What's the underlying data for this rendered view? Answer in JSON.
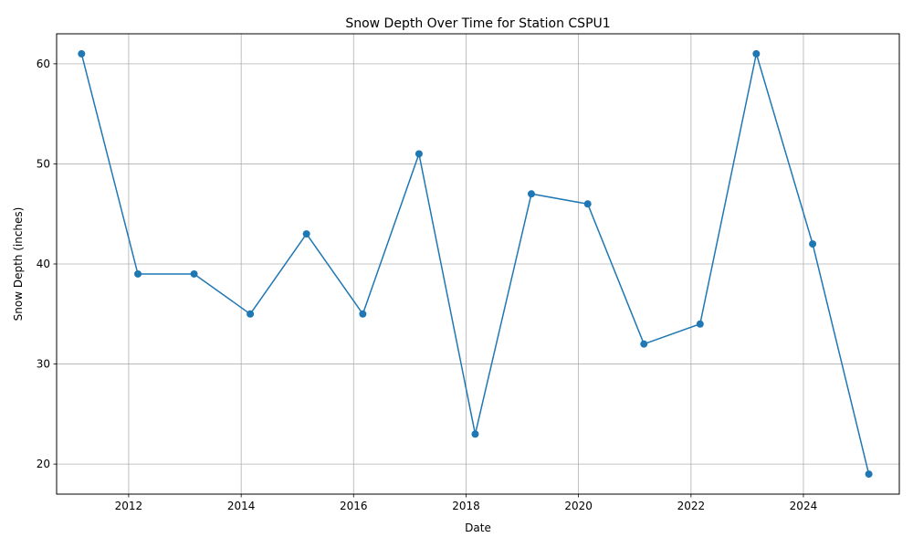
{
  "chart_data": {
    "type": "line",
    "title": "Snow Depth Over Time for Station CSPU1",
    "xlabel": "Date",
    "ylabel": "Snow Depth (inches)",
    "x_is_date": true,
    "xlim": [
      "2010-09-20",
      "2025-09-15"
    ],
    "ylim": [
      17,
      63
    ],
    "x_ticks": [
      {
        "value": "2012-01-01",
        "label": "2012"
      },
      {
        "value": "2014-01-01",
        "label": "2014"
      },
      {
        "value": "2016-01-01",
        "label": "2016"
      },
      {
        "value": "2018-01-01",
        "label": "2018"
      },
      {
        "value": "2020-01-01",
        "label": "2020"
      },
      {
        "value": "2022-01-01",
        "label": "2022"
      },
      {
        "value": "2024-01-01",
        "label": "2024"
      }
    ],
    "y_ticks": [
      20,
      30,
      40,
      50,
      60
    ],
    "grid": true,
    "series": [
      {
        "color": "#1f77b4",
        "marker": "circle",
        "x": [
          "2011-03-01",
          "2012-03-01",
          "2013-03-01",
          "2014-03-01",
          "2015-03-01",
          "2016-03-01",
          "2017-03-01",
          "2018-03-01",
          "2019-03-01",
          "2020-03-01",
          "2021-03-01",
          "2022-03-01",
          "2023-03-01",
          "2024-03-01",
          "2025-03-01"
        ],
        "y": [
          61,
          39,
          39,
          35,
          43,
          35,
          51,
          23,
          47,
          46,
          32,
          34,
          61,
          42,
          19
        ]
      }
    ]
  }
}
